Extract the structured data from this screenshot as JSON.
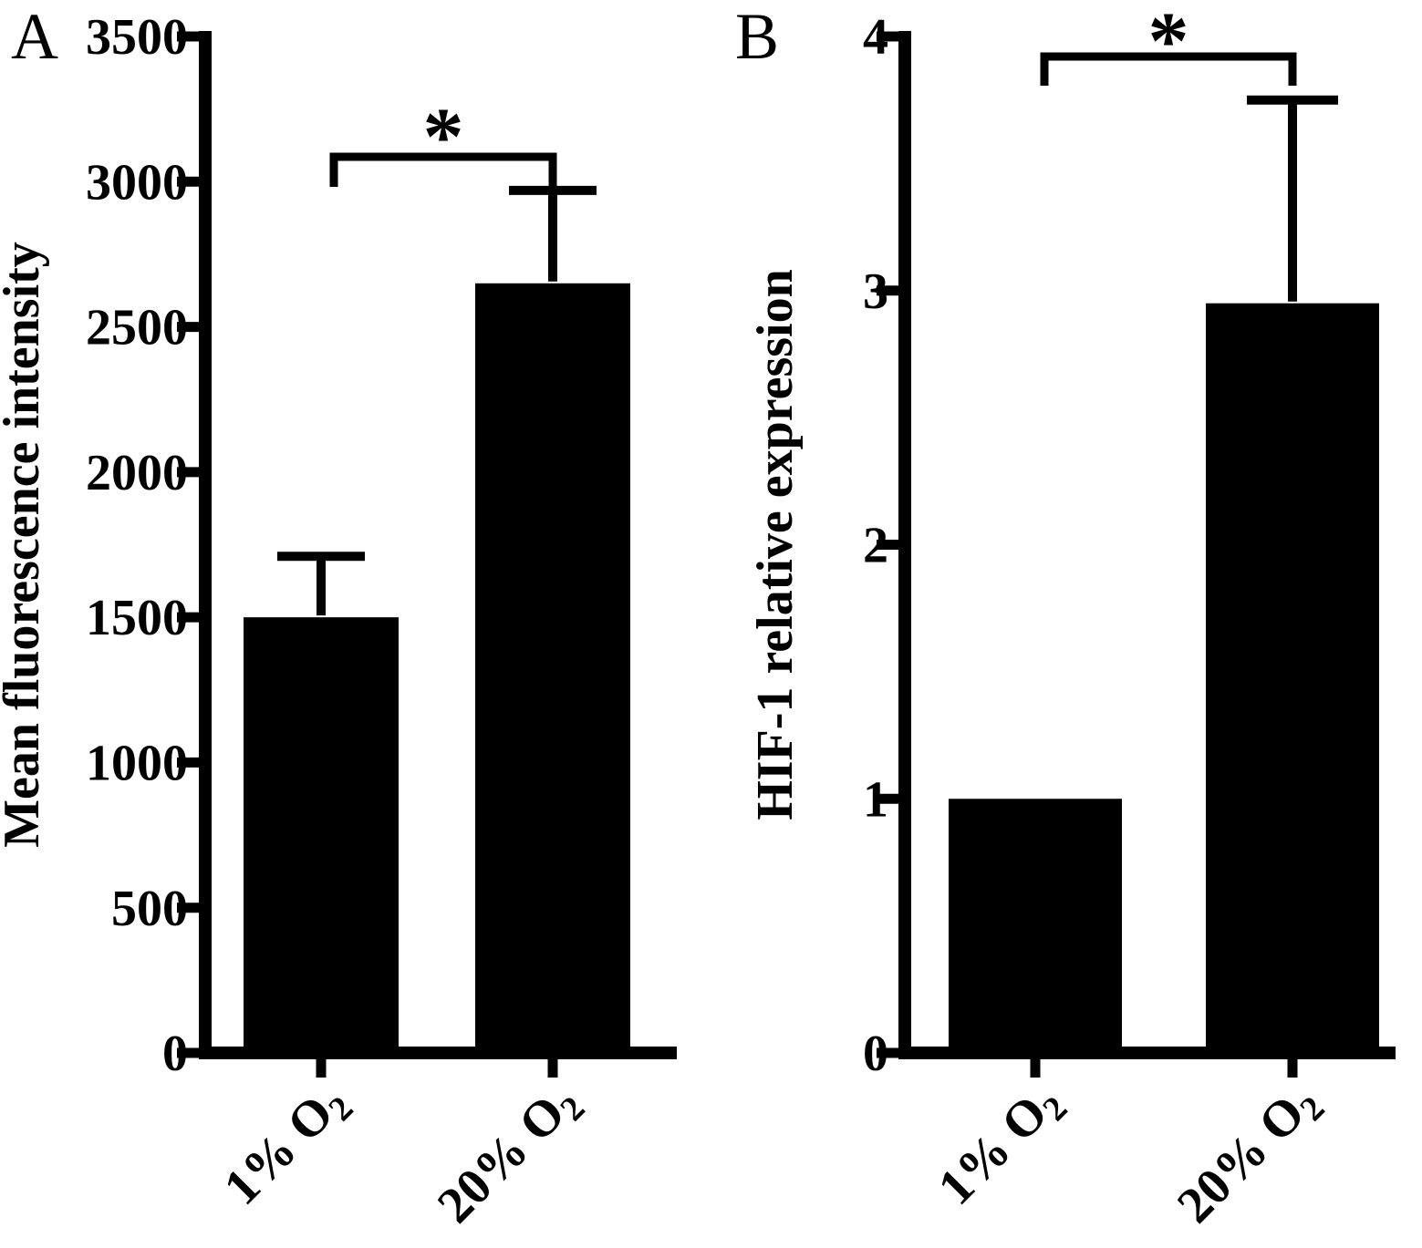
{
  "figure": {
    "background": "#ffffff",
    "bar_color": "#000000",
    "axis_color": "#000000"
  },
  "chart_data": [
    {
      "type": "bar",
      "panel_label": "A",
      "title": "",
      "xlabel": "",
      "ylabel": "Mean fluorescence intensity",
      "categories": [
        "1% O2",
        "20% O2"
      ],
      "values": [
        1500,
        2650
      ],
      "errors_upper": [
        210,
        320
      ],
      "ylim": [
        0,
        3500
      ],
      "yticks": [
        0,
        500,
        1000,
        1500,
        2000,
        2500,
        3000,
        3500
      ],
      "grid": "off",
      "legend": "none",
      "significance": {
        "label": "*",
        "between": [
          "1% O2",
          "20% O2"
        ]
      }
    },
    {
      "type": "bar",
      "panel_label": "B",
      "title": "",
      "xlabel": "",
      "ylabel": "HIF-1 relative expression",
      "categories": [
        "1% O2",
        "20% O2"
      ],
      "values": [
        1.0,
        2.95
      ],
      "errors_upper": [
        0,
        0.8
      ],
      "ylim": [
        0,
        4
      ],
      "yticks": [
        0,
        1,
        2,
        3,
        4
      ],
      "grid": "off",
      "legend": "none",
      "significance": {
        "label": "*",
        "between": [
          "1% O2",
          "20% O2"
        ]
      }
    }
  ]
}
